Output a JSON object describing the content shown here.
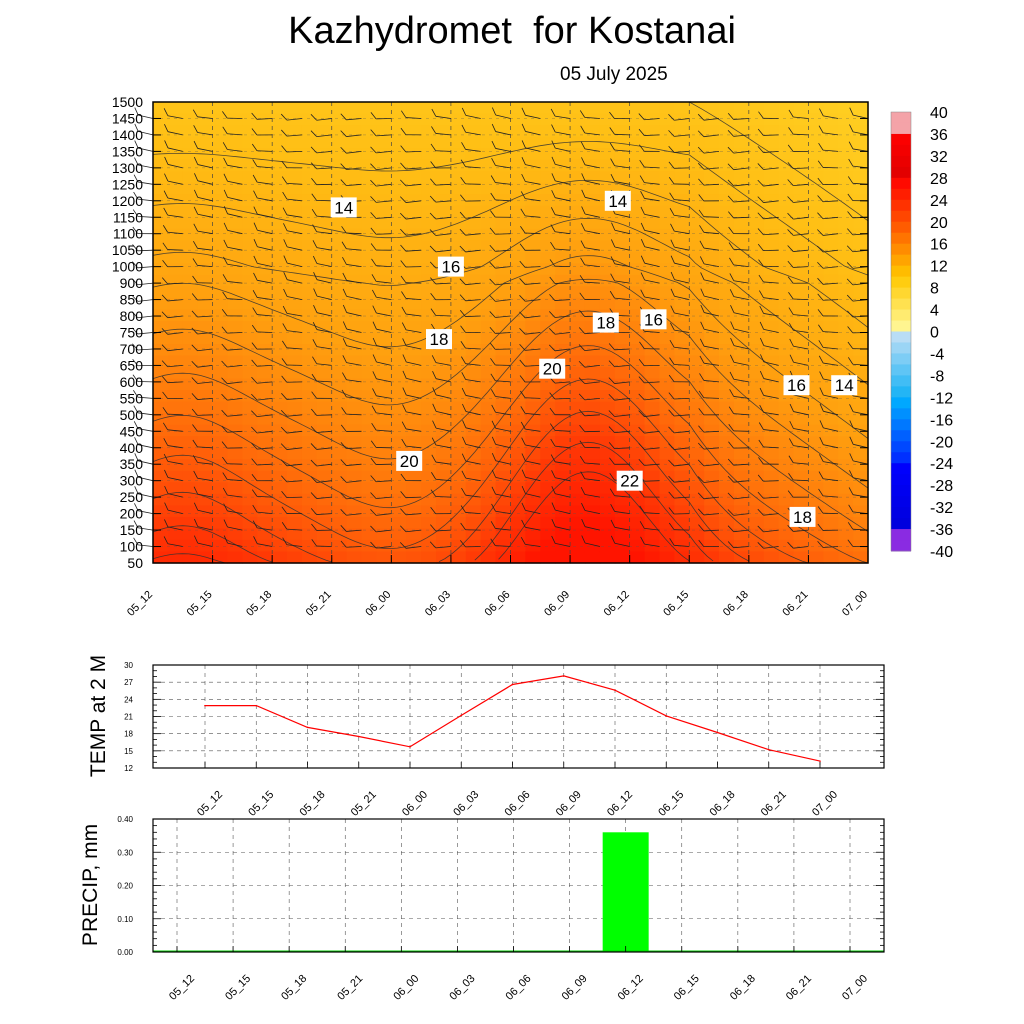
{
  "title": "Kazhydromet  for Kostanai",
  "subtitle": "05 July 2025",
  "chart_data": [
    {
      "type": "heatmap",
      "description_kind": "time-height cross section of temperature with contour lines and wind barbs",
      "x_categories": [
        "05_12",
        "05_15",
        "05_18",
        "05_21",
        "06_00",
        "06_03",
        "06_06",
        "06_09",
        "06_12",
        "06_15",
        "06_18",
        "06_21",
        "07_00"
      ],
      "y_levels": [
        50,
        100,
        150,
        200,
        250,
        300,
        350,
        400,
        450,
        500,
        550,
        600,
        650,
        700,
        750,
        800,
        850,
        900,
        1000,
        1050,
        1100,
        1150,
        1200,
        1250,
        1300,
        1350,
        1400,
        1450,
        1500
      ],
      "colorbar": {
        "labels": [
          "40",
          "36",
          "32",
          "28",
          "24",
          "20",
          "16",
          "12",
          "8",
          "4",
          "0",
          "-4",
          "-8",
          "-12",
          "-16",
          "-20",
          "-24",
          "-28",
          "-32",
          "-36",
          "-40"
        ],
        "range": [
          -40,
          40
        ]
      },
      "contour_labels": [
        {
          "text": "14",
          "t": 3.2,
          "lev": 1180
        },
        {
          "text": "16",
          "t": 5.0,
          "lev": 1000
        },
        {
          "text": "18",
          "t": 4.8,
          "lev": 730
        },
        {
          "text": "20",
          "t": 6.7,
          "lev": 640
        },
        {
          "text": "20",
          "t": 4.3,
          "lev": 360
        },
        {
          "text": "14",
          "t": 7.8,
          "lev": 1200
        },
        {
          "text": "18",
          "t": 7.6,
          "lev": 780
        },
        {
          "text": "16",
          "t": 8.4,
          "lev": 790
        },
        {
          "text": "16",
          "t": 10.8,
          "lev": 590
        },
        {
          "text": "14",
          "t": 11.6,
          "lev": 590
        },
        {
          "text": "22",
          "t": 8.0,
          "lev": 300
        },
        {
          "text": "18",
          "t": 10.9,
          "lev": 190
        }
      ]
    },
    {
      "type": "line",
      "ylabel": "TEMP at 2 M",
      "ylim": [
        12,
        30
      ],
      "yticks": [
        "30",
        "27",
        "24",
        "21",
        "18",
        "15",
        "12"
      ],
      "categories": [
        "05_12",
        "05_15",
        "05_18",
        "05_21",
        "06_00",
        "06_03",
        "06_06",
        "06_09",
        "06_12",
        "06_15",
        "06_18",
        "06_21",
        "07_00"
      ],
      "values": [
        22.9,
        22.9,
        19.1,
        17.5,
        15.7,
        21.2,
        26.6,
        28.1,
        25.6,
        21.1,
        18.2,
        15.2,
        13.2
      ],
      "color": "#ff0000"
    },
    {
      "type": "bar",
      "ylabel": "PRECIP, mm",
      "ylim": [
        0,
        0.4
      ],
      "yticks": [
        "0.40",
        "0.30",
        "0.20",
        "0.10",
        "0.00"
      ],
      "categories": [
        "05_12",
        "05_15",
        "05_18",
        "05_21",
        "06_00",
        "06_03",
        "06_06",
        "06_09",
        "06_12",
        "06_15",
        "06_18",
        "06_21",
        "07_00"
      ],
      "values": [
        0,
        0,
        0,
        0,
        0,
        0,
        0,
        0,
        0.36,
        0,
        0,
        0,
        0
      ],
      "color": "#00ff00"
    }
  ]
}
